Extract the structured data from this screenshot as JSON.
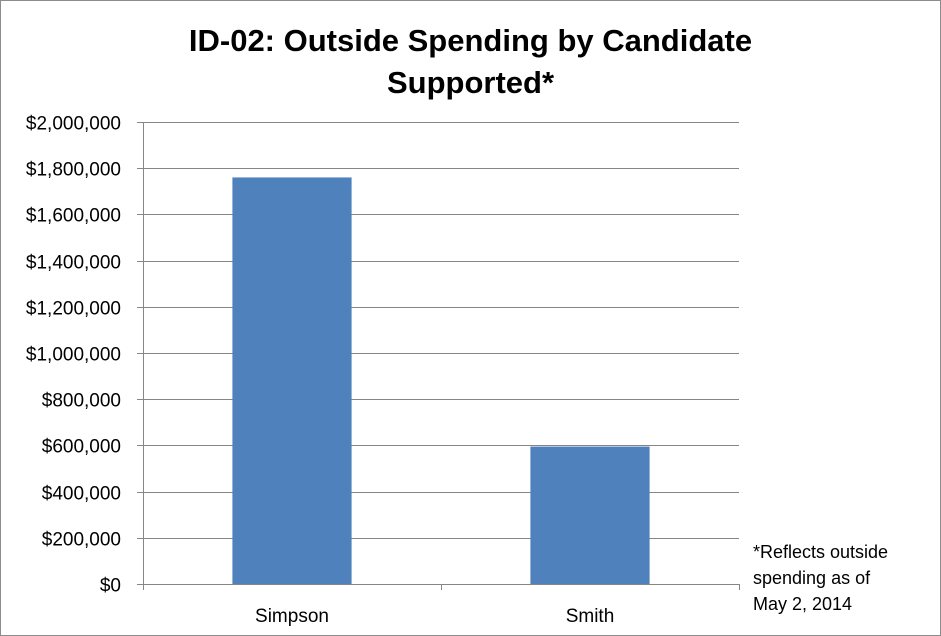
{
  "chart_data": {
    "type": "bar",
    "title_lines": [
      "ID-02: Outside Spending by Candidate",
      "Supported*"
    ],
    "categories": [
      "Simpson",
      "Smith"
    ],
    "values": [
      1760000,
      595000
    ],
    "ylim": [
      0,
      2000000
    ],
    "ytick_values": [
      0,
      200000,
      400000,
      600000,
      800000,
      1000000,
      1200000,
      1400000,
      1600000,
      1800000,
      2000000
    ],
    "ytick_labels": [
      "$0",
      "$200,000",
      "$400,000",
      "$600,000",
      "$800,000",
      "$1,000,000",
      "$1,200,000",
      "$1,400,000",
      "$1,600,000",
      "$1,800,000",
      "$2,000,000"
    ],
    "grid": true,
    "bar_color": "#4f81bd",
    "footnote_lines": [
      "*Reflects outside",
      "spending as of",
      "May 2, 2014"
    ]
  }
}
